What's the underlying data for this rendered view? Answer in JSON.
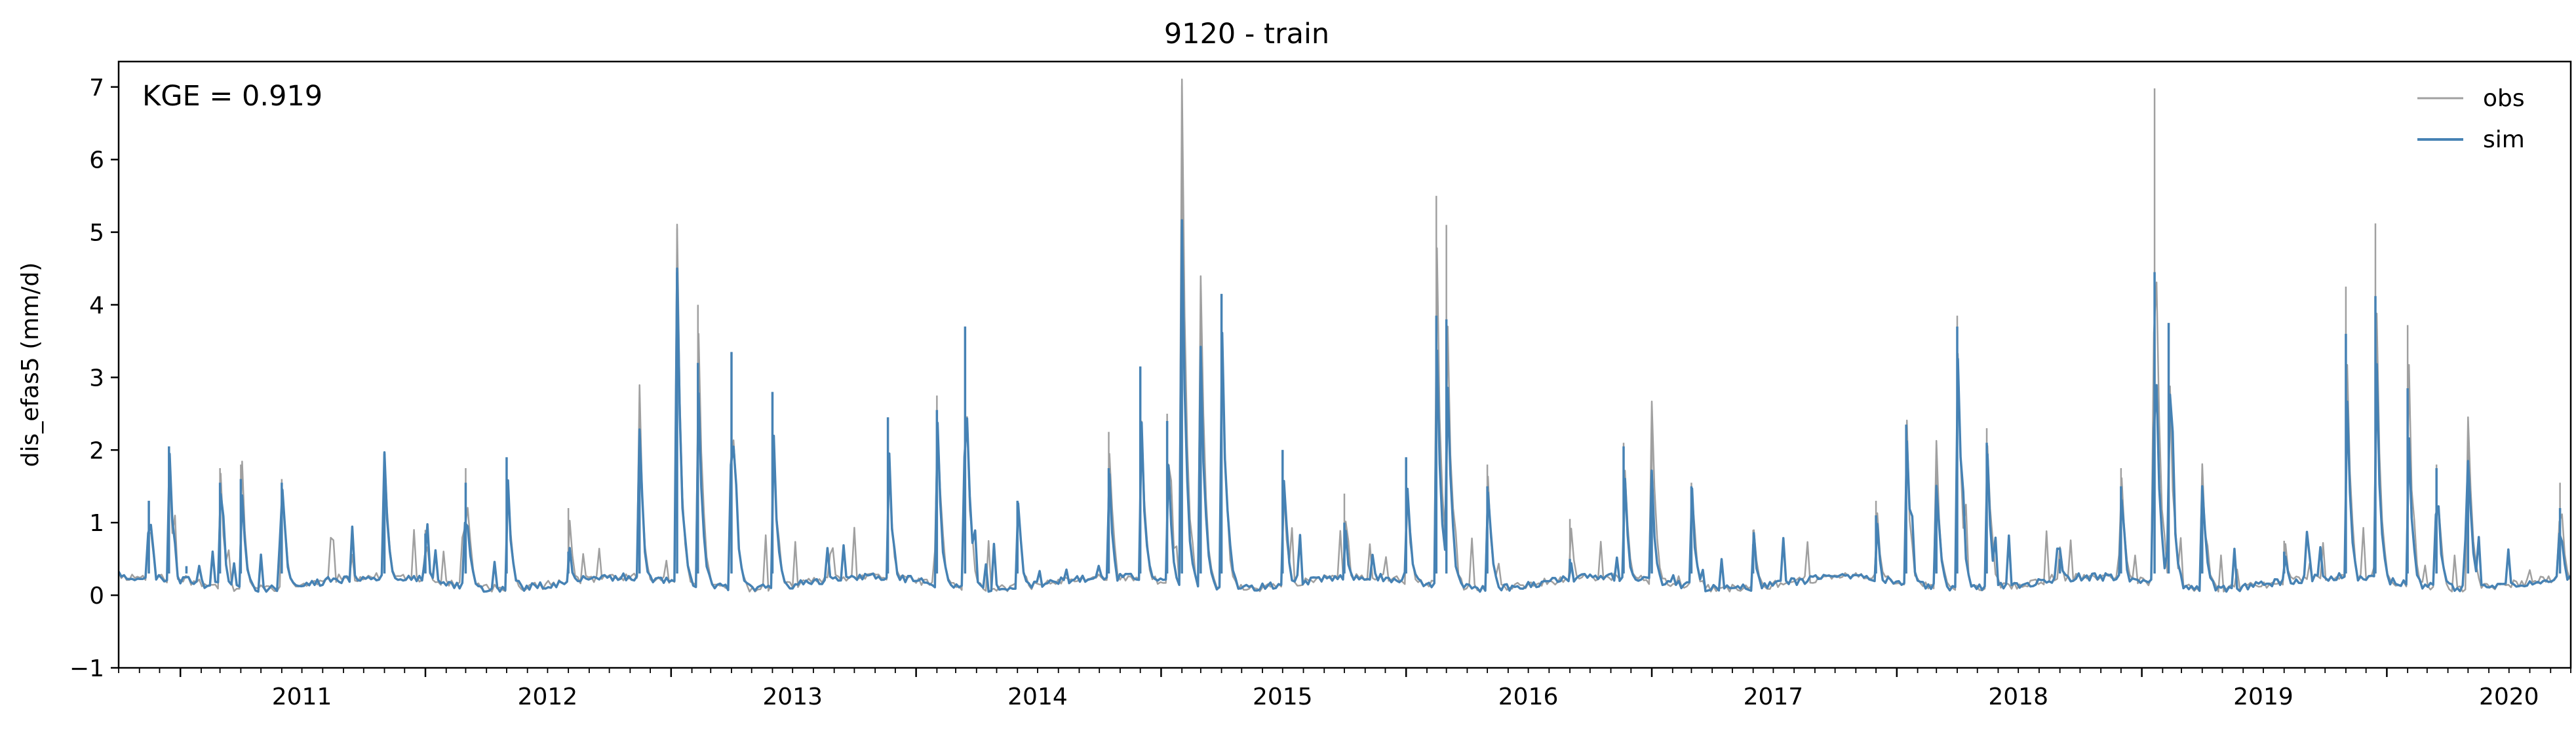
{
  "chart_data": {
    "type": "line",
    "title": "9120 - train",
    "ylabel": "dis_efas5 (mm/d)",
    "xlabel": "",
    "annotation": "KGE = 0.919",
    "ylim": [
      -1,
      7.35
    ],
    "xlim": [
      "2010-10-01",
      "2020-10-01"
    ],
    "yticks": [
      -1,
      0,
      1,
      2,
      3,
      4,
      5,
      6,
      7
    ],
    "xticks": [
      "2011",
      "2012",
      "2013",
      "2014",
      "2015",
      "2016",
      "2017",
      "2018",
      "2019",
      "2020"
    ],
    "legend": "top-right",
    "grid": false,
    "colors": {
      "obs": "#a0a0a0",
      "sim": "#4682b4"
    },
    "series": [
      {
        "name": "obs",
        "points": [
          [
            "2010-10-01",
            0.3
          ],
          [
            "2010-11-15",
            1.3
          ],
          [
            "2010-12-15",
            1.8
          ],
          [
            "2011-01-10",
            0.4
          ],
          [
            "2011-03-01",
            1.75
          ],
          [
            "2011-04-01",
            1.8
          ],
          [
            "2011-06-01",
            1.6
          ],
          [
            "2011-11-01",
            1.95
          ],
          [
            "2012-01-01",
            0.9
          ],
          [
            "2012-03-01",
            1.75
          ],
          [
            "2012-05-01",
            1.9
          ],
          [
            "2012-08-01",
            1.2
          ],
          [
            "2012-11-15",
            2.2
          ],
          [
            "2013-01-10",
            5.05
          ],
          [
            "2013-02-10",
            4.0
          ],
          [
            "2013-04-01",
            3.35
          ],
          [
            "2013-06-01",
            2.8
          ],
          [
            "2013-11-20",
            2.45
          ],
          [
            "2014-02-01",
            2.75
          ],
          [
            "2014-03-15",
            3.7
          ],
          [
            "2014-06-01",
            1.3
          ],
          [
            "2014-10-15",
            2.25
          ],
          [
            "2014-12-01",
            3.15
          ],
          [
            "2015-01-10",
            2.5
          ],
          [
            "2015-02-01",
            7.02
          ],
          [
            "2015-03-01",
            4.25
          ],
          [
            "2015-04-01",
            4.15
          ],
          [
            "2015-07-01",
            2.0
          ],
          [
            "2015-10-01",
            1.4
          ],
          [
            "2016-01-01",
            1.9
          ],
          [
            "2016-02-15",
            5.5
          ],
          [
            "2016-03-01",
            5.1
          ],
          [
            "2016-05-01",
            1.8
          ],
          [
            "2016-09-01",
            1.05
          ],
          [
            "2016-11-20",
            2.1
          ],
          [
            "2017-01-01",
            2.5
          ],
          [
            "2017-03-01",
            1.55
          ],
          [
            "2017-06-01",
            0.9
          ],
          [
            "2017-12-01",
            1.3
          ],
          [
            "2018-01-15",
            2.35
          ],
          [
            "2018-03-01",
            1.95
          ],
          [
            "2018-04-01",
            3.85
          ],
          [
            "2018-05-15",
            2.3
          ],
          [
            "2018-09-01",
            0.65
          ],
          [
            "2018-12-01",
            1.75
          ],
          [
            "2019-01-20",
            6.98
          ],
          [
            "2019-02-10",
            3.75
          ],
          [
            "2019-04-01",
            1.65
          ],
          [
            "2019-08-01",
            0.75
          ],
          [
            "2019-11-01",
            4.25
          ],
          [
            "2019-12-15",
            5.12
          ],
          [
            "2020-02-01",
            3.72
          ],
          [
            "2020-03-15",
            1.8
          ],
          [
            "2020-05-01",
            2.4
          ],
          [
            "2020-09-15",
            1.55
          ]
        ]
      },
      {
        "name": "sim",
        "points": [
          [
            "2010-10-01",
            0.3
          ],
          [
            "2010-11-15",
            1.3
          ],
          [
            "2010-12-15",
            2.05
          ],
          [
            "2011-01-10",
            0.4
          ],
          [
            "2011-03-01",
            1.55
          ],
          [
            "2011-04-01",
            1.6
          ],
          [
            "2011-06-01",
            1.55
          ],
          [
            "2011-11-01",
            1.95
          ],
          [
            "2012-01-01",
            0.85
          ],
          [
            "2012-03-01",
            1.55
          ],
          [
            "2012-05-01",
            1.9
          ],
          [
            "2012-08-01",
            0.6
          ],
          [
            "2012-11-15",
            2.2
          ],
          [
            "2013-01-10",
            4.45
          ],
          [
            "2013-02-10",
            3.2
          ],
          [
            "2013-04-01",
            3.35
          ],
          [
            "2013-06-01",
            2.8
          ],
          [
            "2013-11-20",
            2.45
          ],
          [
            "2014-02-01",
            2.55
          ],
          [
            "2014-03-15",
            3.7
          ],
          [
            "2014-06-01",
            1.3
          ],
          [
            "2014-10-15",
            1.75
          ],
          [
            "2014-12-01",
            3.15
          ],
          [
            "2015-01-10",
            2.4
          ],
          [
            "2015-02-01",
            5.08
          ],
          [
            "2015-03-01",
            3.2
          ],
          [
            "2015-04-01",
            4.15
          ],
          [
            "2015-07-01",
            2.0
          ],
          [
            "2015-10-01",
            1.0
          ],
          [
            "2016-01-01",
            1.9
          ],
          [
            "2016-02-15",
            3.85
          ],
          [
            "2016-03-01",
            3.8
          ],
          [
            "2016-05-01",
            1.5
          ],
          [
            "2016-09-01",
            0.5
          ],
          [
            "2016-11-20",
            2.05
          ],
          [
            "2017-01-01",
            1.55
          ],
          [
            "2017-03-01",
            1.5
          ],
          [
            "2017-06-01",
            0.7
          ],
          [
            "2017-12-01",
            1.1
          ],
          [
            "2018-01-15",
            2.35
          ],
          [
            "2018-03-01",
            1.5
          ],
          [
            "2018-04-01",
            3.7
          ],
          [
            "2018-05-15",
            2.1
          ],
          [
            "2018-09-01",
            0.5
          ],
          [
            "2018-12-01",
            1.5
          ],
          [
            "2019-01-20",
            4.45
          ],
          [
            "2019-02-10",
            3.75
          ],
          [
            "2019-04-01",
            1.4
          ],
          [
            "2019-08-01",
            0.6
          ],
          [
            "2019-11-01",
            3.6
          ],
          [
            "2019-12-15",
            4.12
          ],
          [
            "2020-02-01",
            2.85
          ],
          [
            "2020-03-15",
            1.75
          ],
          [
            "2020-05-01",
            1.8
          ],
          [
            "2020-09-15",
            1.2
          ]
        ]
      }
    ]
  }
}
